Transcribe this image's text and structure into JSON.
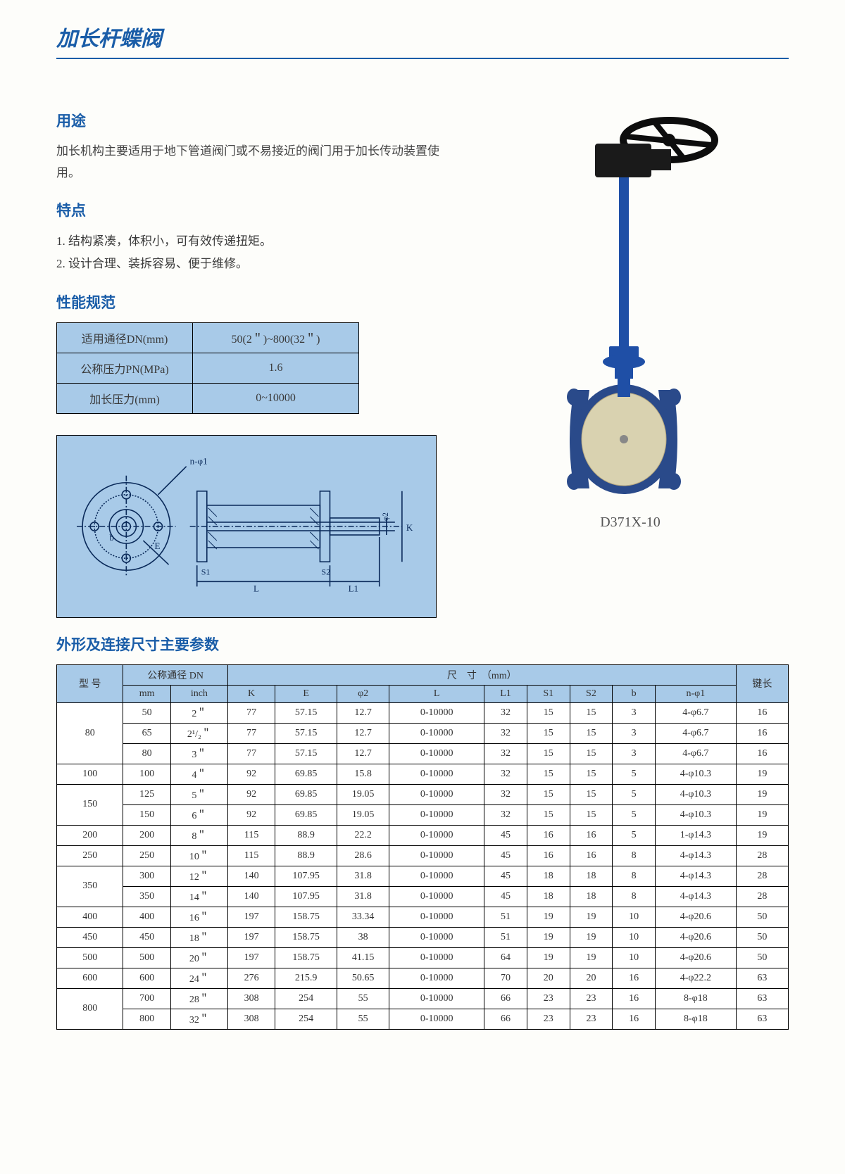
{
  "page_title": "加长杆蝶阀",
  "usage": {
    "heading": "用途",
    "text": "加长机构主要适用于地下管道阀门或不易接近的阀门用于加长传动装置使用。"
  },
  "features": {
    "heading": "特点",
    "items": [
      "结构紧凑，体积小，可有效传递扭矩。",
      "设计合理、装拆容易、便于维修。"
    ]
  },
  "spec": {
    "heading": "性能规范",
    "rows": [
      {
        "label": "适用通径DN(mm)",
        "value": "50(2＂)~800(32＂)"
      },
      {
        "label": "公称压力PN(MPa)",
        "value": "1.6"
      },
      {
        "label": "加长压力(mm)",
        "value": "0~10000"
      }
    ],
    "colors": {
      "cell_bg": "#a8cae8",
      "border": "#000000"
    }
  },
  "diagram": {
    "bg": "#a8cae8",
    "line_color": "#0a2a5a",
    "labels": {
      "n_phi1": "n-φ1",
      "E": "E",
      "S1": "S1",
      "L": "L",
      "S2": "S2",
      "L1": "L1",
      "phi2": "φ2",
      "K": "K",
      "b": "b"
    }
  },
  "product": {
    "model": "D371X-10",
    "colors": {
      "body": "#1f4fa6",
      "gear_box": "#1a1a1a",
      "wheel": "#0d0d0d",
      "disc_face": "#d9d2b0",
      "disc_rim": "#2a4a8a",
      "stem": "#1f4fa6"
    }
  },
  "dims": {
    "heading": "外形及连接尺寸主要参数",
    "header": {
      "model": "型 号",
      "dn": "公称通径 DN",
      "mm": "mm",
      "inch": "inch",
      "size": "尺　寸　（mm）",
      "K": "K",
      "E": "E",
      "phi2": "φ2",
      "L": "L",
      "L1": "L1",
      "S1": "S1",
      "S2": "S2",
      "b": "b",
      "n_phi1": "n-φ1",
      "key_len": "键长"
    },
    "groups": [
      {
        "model": "80",
        "rows": [
          {
            "mm": "50",
            "inch": "2＂",
            "K": "77",
            "E": "57.15",
            "phi2": "12.7",
            "L": "0-10000",
            "L1": "32",
            "S1": "15",
            "S2": "15",
            "b": "3",
            "nphi1": "4-φ6.7",
            "key": "16"
          },
          {
            "mm": "65",
            "inch": "2¹/₂＂",
            "K": "77",
            "E": "57.15",
            "phi2": "12.7",
            "L": "0-10000",
            "L1": "32",
            "S1": "15",
            "S2": "15",
            "b": "3",
            "nphi1": "4-φ6.7",
            "key": "16"
          },
          {
            "mm": "80",
            "inch": "3＂",
            "K": "77",
            "E": "57.15",
            "phi2": "12.7",
            "L": "0-10000",
            "L1": "32",
            "S1": "15",
            "S2": "15",
            "b": "3",
            "nphi1": "4-φ6.7",
            "key": "16"
          }
        ]
      },
      {
        "model": "100",
        "rows": [
          {
            "mm": "100",
            "inch": "4＂",
            "K": "92",
            "E": "69.85",
            "phi2": "15.8",
            "L": "0-10000",
            "L1": "32",
            "S1": "15",
            "S2": "15",
            "b": "5",
            "nphi1": "4-φ10.3",
            "key": "19"
          }
        ]
      },
      {
        "model": "150",
        "rows": [
          {
            "mm": "125",
            "inch": "5＂",
            "K": "92",
            "E": "69.85",
            "phi2": "19.05",
            "L": "0-10000",
            "L1": "32",
            "S1": "15",
            "S2": "15",
            "b": "5",
            "nphi1": "4-φ10.3",
            "key": "19"
          },
          {
            "mm": "150",
            "inch": "6＂",
            "K": "92",
            "E": "69.85",
            "phi2": "19.05",
            "L": "0-10000",
            "L1": "32",
            "S1": "15",
            "S2": "15",
            "b": "5",
            "nphi1": "4-φ10.3",
            "key": "19"
          }
        ]
      },
      {
        "model": "200",
        "rows": [
          {
            "mm": "200",
            "inch": "8＂",
            "K": "115",
            "E": "88.9",
            "phi2": "22.2",
            "L": "0-10000",
            "L1": "45",
            "S1": "16",
            "S2": "16",
            "b": "5",
            "nphi1": "1-φ14.3",
            "key": "19"
          }
        ]
      },
      {
        "model": "250",
        "rows": [
          {
            "mm": "250",
            "inch": "10＂",
            "K": "115",
            "E": "88.9",
            "phi2": "28.6",
            "L": "0-10000",
            "L1": "45",
            "S1": "16",
            "S2": "16",
            "b": "8",
            "nphi1": "4-φ14.3",
            "key": "28"
          }
        ]
      },
      {
        "model": "350",
        "rows": [
          {
            "mm": "300",
            "inch": "12＂",
            "K": "140",
            "E": "107.95",
            "phi2": "31.8",
            "L": "0-10000",
            "L1": "45",
            "S1": "18",
            "S2": "18",
            "b": "8",
            "nphi1": "4-φ14.3",
            "key": "28"
          },
          {
            "mm": "350",
            "inch": "14＂",
            "K": "140",
            "E": "107.95",
            "phi2": "31.8",
            "L": "0-10000",
            "L1": "45",
            "S1": "18",
            "S2": "18",
            "b": "8",
            "nphi1": "4-φ14.3",
            "key": "28"
          }
        ]
      },
      {
        "model": "400",
        "rows": [
          {
            "mm": "400",
            "inch": "16＂",
            "K": "197",
            "E": "158.75",
            "phi2": "33.34",
            "L": "0-10000",
            "L1": "51",
            "S1": "19",
            "S2": "19",
            "b": "10",
            "nphi1": "4-φ20.6",
            "key": "50"
          }
        ]
      },
      {
        "model": "450",
        "rows": [
          {
            "mm": "450",
            "inch": "18＂",
            "K": "197",
            "E": "158.75",
            "phi2": "38",
            "L": "0-10000",
            "L1": "51",
            "S1": "19",
            "S2": "19",
            "b": "10",
            "nphi1": "4-φ20.6",
            "key": "50"
          }
        ]
      },
      {
        "model": "500",
        "rows": [
          {
            "mm": "500",
            "inch": "20＂",
            "K": "197",
            "E": "158.75",
            "phi2": "41.15",
            "L": "0-10000",
            "L1": "64",
            "S1": "19",
            "S2": "19",
            "b": "10",
            "nphi1": "4-φ20.6",
            "key": "50"
          }
        ]
      },
      {
        "model": "600",
        "rows": [
          {
            "mm": "600",
            "inch": "24＂",
            "K": "276",
            "E": "215.9",
            "phi2": "50.65",
            "L": "0-10000",
            "L1": "70",
            "S1": "20",
            "S2": "20",
            "b": "16",
            "nphi1": "4-φ22.2",
            "key": "63"
          }
        ]
      },
      {
        "model": "800",
        "rows": [
          {
            "mm": "700",
            "inch": "28＂",
            "K": "308",
            "E": "254",
            "phi2": "55",
            "L": "0-10000",
            "L1": "66",
            "S1": "23",
            "S2": "23",
            "b": "16",
            "nphi1": "8-φ18",
            "key": "63"
          },
          {
            "mm": "800",
            "inch": "32＂",
            "K": "308",
            "E": "254",
            "phi2": "55",
            "L": "0-10000",
            "L1": "66",
            "S1": "23",
            "S2": "23",
            "b": "16",
            "nphi1": "8-φ18",
            "key": "63"
          }
        ]
      }
    ]
  }
}
